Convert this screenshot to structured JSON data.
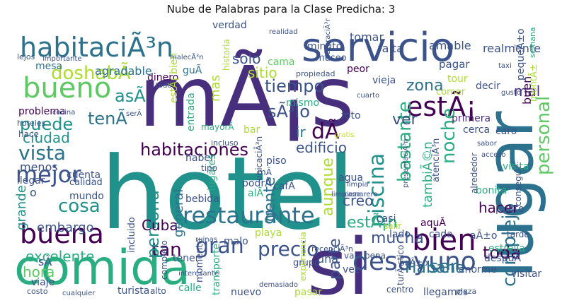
{
  "title": "Nube de Palabras para la Clase Predicha: 3",
  "palette": [
    "#440154",
    "#472f7d",
    "#3b528b",
    "#2c728e",
    "#21918c",
    "#28ae80",
    "#5ec962",
    "#addc30",
    "#c8e020"
  ],
  "words": [
    {
      "text": "hotel",
      "color": "#21918c"
    },
    {
      "text": "mÃ¡s",
      "color": "#472f7d"
    },
    {
      "text": "lugar",
      "color": "#2c728e"
    },
    {
      "text": "comida",
      "color": "#28ae80"
    },
    {
      "text": "si",
      "color": "#472f7d"
    },
    {
      "text": "servicio",
      "color": "#3b528b"
    },
    {
      "text": "habitaciÃ³n",
      "color": "#2c728e"
    },
    {
      "text": "bueno",
      "color": "#5ec962"
    },
    {
      "text": "mejor",
      "color": "#3b528b"
    },
    {
      "text": "buena",
      "color": "#440154"
    },
    {
      "text": "restaurante",
      "color": "#2c728e"
    },
    {
      "text": "bien",
      "color": "#440154"
    },
    {
      "text": "desayuno",
      "color": "#3b528b"
    },
    {
      "text": "estÃ¡",
      "color": "#440154"
    },
    {
      "text": "piscina",
      "color": "#21918c"
    },
    {
      "text": "personal",
      "color": "#5ec962"
    },
    {
      "text": "noche",
      "color": "#28ae80"
    },
    {
      "text": "bastante",
      "color": "#28ae80"
    },
    {
      "text": "habitaciones",
      "color": "#440154"
    },
    {
      "text": "vista",
      "color": "#2c728e"
    },
    {
      "text": "tiempo",
      "color": "#3b528b"
    },
    {
      "text": "complejo",
      "color": "#2c728e"
    },
    {
      "text": "gran",
      "color": "#3b528b"
    },
    {
      "text": "tan",
      "color": "#440154"
    },
    {
      "text": "precio",
      "color": "#3b528b"
    },
    {
      "text": "Habana",
      "color": "#2c728e"
    },
    {
      "text": "persona",
      "color": "#21918c"
    },
    {
      "text": "cosa",
      "color": "#21918c"
    },
    {
      "text": "doshabÃ",
      "color": "#addc30"
    },
    {
      "text": "asÃ",
      "color": "#21918c"
    },
    {
      "text": "puede",
      "color": "#21918c"
    },
    {
      "text": "tenÃ",
      "color": "#2c728e"
    },
    {
      "text": "ciudad",
      "color": "#21918c"
    },
    {
      "text": "sÃ³lo",
      "color": "#3b528b"
    },
    {
      "text": "dÃ",
      "color": "#440154"
    },
    {
      "text": "ver",
      "color": "#3b528b"
    },
    {
      "text": "zona",
      "color": "#2c728e"
    },
    {
      "text": "mal",
      "color": "#472f7d"
    },
    {
      "text": "solo",
      "color": "#3b528b"
    },
    {
      "text": "sitio",
      "color": "#addc30"
    },
    {
      "text": "gente",
      "color": "#2c728e"
    },
    {
      "text": "aunque",
      "color": "#addc30"
    },
    {
      "text": "creo",
      "color": "#3b528b"
    },
    {
      "text": "hacer",
      "color": "#440154"
    },
    {
      "text": "mucha",
      "color": "#3b528b"
    },
    {
      "text": "ser",
      "color": "#2c728e"
    },
    {
      "text": "toda",
      "color": "#440154"
    },
    {
      "text": "excelente",
      "color": "#28ae80"
    },
    {
      "text": "embargo",
      "color": "#3b528b"
    },
    {
      "text": "Cuba",
      "color": "#440154"
    },
    {
      "text": "general",
      "color": "#2c728e"
    },
    {
      "text": "edificio",
      "color": "#3b528b"
    },
    {
      "text": "menos",
      "color": "#3b528b"
    },
    {
      "text": "ir",
      "color": "#2c728e"
    },
    {
      "text": "estÃ¡n",
      "color": "#28ae80"
    },
    {
      "text": "tambiÃ©n",
      "color": "#28ae80"
    },
    {
      "text": "parte",
      "color": "#3b528b"
    },
    {
      "text": "hora",
      "color": "#5ec962"
    },
    {
      "text": "grande",
      "color": "#21918c"
    },
    {
      "text": "mas",
      "color": "#addc30"
    },
    {
      "text": "buen",
      "color": "#440154"
    },
    {
      "text": "tomar",
      "color": "#3b528b"
    },
    {
      "text": "falta",
      "color": "#3b528b"
    },
    {
      "text": "amable",
      "color": "#3b528b"
    },
    {
      "text": "realmente",
      "color": "#3b528b"
    },
    {
      "text": "agradable",
      "color": "#2c728e"
    },
    {
      "text": "mesa",
      "color": "#2c728e"
    },
    {
      "text": "verdad",
      "color": "#3b528b"
    },
    {
      "text": "minuto",
      "color": "#3b528b"
    },
    {
      "text": "museo",
      "color": "#3b528b"
    },
    {
      "text": "pagar",
      "color": "#3b528b"
    },
    {
      "text": "peor",
      "color": "#440154"
    },
    {
      "text": "vieja",
      "color": "#3b528b"
    },
    {
      "text": "dinero",
      "color": "#440154"
    },
    {
      "text": "guÃ",
      "color": "#2c728e"
    },
    {
      "text": "cama",
      "color": "#5ec962"
    },
    {
      "text": "tour",
      "color": "#addc30"
    },
    {
      "text": "decir",
      "color": "#3b528b"
    },
    {
      "text": "comer",
      "color": "#addc30"
    },
    {
      "text": "mismo",
      "color": "#28ae80"
    },
    {
      "text": "foto",
      "color": "#3b528b"
    },
    {
      "text": "primera",
      "color": "#472f7d"
    },
    {
      "text": "cerca",
      "color": "#3b528b"
    },
    {
      "text": "caro",
      "color": "#3b528b"
    },
    {
      "text": "problema",
      "color": "#440154"
    },
    {
      "text": "hace",
      "color": "#3b528b"
    },
    {
      "text": "entrada",
      "color": "#28ae80"
    },
    {
      "text": "bar",
      "color": "#addc30"
    },
    {
      "text": "piso",
      "color": "#3b528b"
    },
    {
      "text": "haber",
      "color": "#3b528b"
    },
    {
      "text": "cuenta",
      "color": "#3b528b"
    },
    {
      "text": "llegar",
      "color": "#3b528b"
    },
    {
      "text": "calidad",
      "color": "#3b528b"
    },
    {
      "text": "lugares",
      "color": "#28ae80"
    },
    {
      "text": "bebida",
      "color": "#3b528b"
    },
    {
      "text": "cafÃ",
      "color": "#3b528b"
    },
    {
      "text": "podrÃ",
      "color": "#3b528b"
    },
    {
      "text": "alÃ",
      "color": "#28ae80"
    },
    {
      "text": "agua",
      "color": "#3b528b"
    },
    {
      "text": "mundo",
      "color": "#3b528b"
    },
    {
      "text": "visita",
      "color": "#28ae80"
    },
    {
      "text": "punto",
      "color": "#3b528b"
    },
    {
      "text": "bonita",
      "color": "#28ae80"
    },
    {
      "text": "casi",
      "color": "#3b528b"
    },
    {
      "text": "incluido",
      "color": "#3b528b"
    },
    {
      "text": "salir",
      "color": "#addc30"
    },
    {
      "text": "aquÃ",
      "color": "#440154"
    },
    {
      "text": "cada",
      "color": "#3b528b"
    },
    {
      "text": "lado",
      "color": "#3b528b"
    },
    {
      "text": "estrella",
      "color": "#28ae80"
    },
    {
      "text": "malo",
      "color": "#3b528b"
    },
    {
      "text": "playa",
      "color": "#addc30"
    },
    {
      "text": "tener",
      "color": "#3b528b"
    },
    {
      "text": "viaje",
      "color": "#3b528b"
    },
    {
      "text": "momento",
      "color": "#3b528b"
    },
    {
      "text": "transporte",
      "color": "#28ae80"
    },
    {
      "text": "calle",
      "color": "#28ae80"
    },
    {
      "text": "turista",
      "color": "#3b528b"
    },
    {
      "text": "alto",
      "color": "#3b528b"
    },
    {
      "text": "nuevo",
      "color": "#3b528b"
    },
    {
      "text": "pasar",
      "color": "#addc30"
    },
    {
      "text": "vez",
      "color": "#3b528b"
    },
    {
      "text": "grupo",
      "color": "#3b528b"
    },
    {
      "text": "vale pena",
      "color": "#3b528b"
    },
    {
      "text": "enorme",
      "color": "#3b528b"
    },
    {
      "text": "despuÃ",
      "color": "#3b528b"
    },
    {
      "text": "visitar",
      "color": "#3b528b"
    },
    {
      "text": "llegamos",
      "color": "#3b528b"
    },
    {
      "text": "centro",
      "color": "#3b528b"
    },
    {
      "text": "costo",
      "color": "#3b528b"
    },
    {
      "text": "sÃ",
      "color": "#3b528b"
    },
    {
      "text": "una",
      "color": "#3b528b"
    },
    {
      "text": "tarde",
      "color": "#3b528b"
    },
    {
      "text": "aÃ±o",
      "color": "#3b528b"
    },
    {
      "text": "plaza",
      "color": "#3b528b"
    },
    {
      "text": "conseguir",
      "color": "#3b528b"
    },
    {
      "text": "alrededor",
      "color": "#3b528b"
    },
    {
      "text": "atenciÃ³n",
      "color": "#3b528b"
    },
    {
      "text": "mayorÃ",
      "color": "#28ae80"
    },
    {
      "text": "tipo",
      "color": "#3b528b"
    },
    {
      "text": "ubicaciÃ³n",
      "color": "#3b528b"
    },
    {
      "text": "mÃ",
      "color": "#3b528b"
    },
    {
      "text": "pequeÃ±o",
      "color": "#3b528b"
    },
    {
      "text": "montÃ±",
      "color": "#addc30"
    },
    {
      "text": "o",
      "color": "#3b528b"
    },
    {
      "text": "gratis",
      "color": "#c8e020"
    },
    {
      "text": "lejos",
      "color": "#3b528b"
    },
    {
      "text": "incluso",
      "color": "#3b528b"
    },
    {
      "text": "hoteles",
      "color": "#3b528b"
    },
    {
      "text": "cocina",
      "color": "#3b528b"
    },
    {
      "text": "importante",
      "color": "#3b528b"
    },
    {
      "text": "propiedad",
      "color": "#3b528b"
    },
    {
      "text": "semana",
      "color": "#28ae80"
    },
    {
      "text": "taxi",
      "color": "#3b528b"
    },
    {
      "text": "gusto",
      "color": "#3b528b"
    },
    {
      "text": "sabor",
      "color": "#3b528b"
    },
    {
      "text": "acceso",
      "color": "#3b528b"
    },
    {
      "text": "limpia",
      "color": "#3b528b"
    },
    {
      "text": "camarero",
      "color": "#3b528b"
    },
    {
      "text": "experiencia",
      "color": "#addc30"
    },
    {
      "text": "recepciÃ³n",
      "color": "#3b528b"
    },
    {
      "text": "cualquier",
      "color": "#3b528b"
    },
    {
      "text": "demasiado",
      "color": "#3b528b"
    },
    {
      "text": "interesante",
      "color": "#3b528b"
    },
    {
      "text": "ruinas",
      "color": "#3b528b"
    },
    {
      "text": "completo",
      "color": "#3b528b"
    },
    {
      "text": "todo",
      "color": "#3b528b"
    },
    {
      "text": "realidad",
      "color": "#3b528b"
    },
    {
      "text": "estÃ¡ bien",
      "color": "#addc30"
    },
    {
      "text": "historia",
      "color": "#addc30"
    },
    {
      "text": "decoraciÃ³n",
      "color": "#3b528b"
    },
    {
      "text": "cuarto",
      "color": "#3b528b"
    },
    {
      "text": "limpieza",
      "color": "#3b528b"
    },
    {
      "text": "presentaciÃ³n",
      "color": "#3b528b"
    },
    {
      "text": "turÃ stico",
      "color": "#3b528b"
    },
    {
      "text": "baÃ±o",
      "color": "#3b528b"
    },
    {
      "text": "malecÃ³n",
      "color": "#3b528b"
    },
    {
      "text": "serÃ",
      "color": "#3b528b"
    }
  ]
}
